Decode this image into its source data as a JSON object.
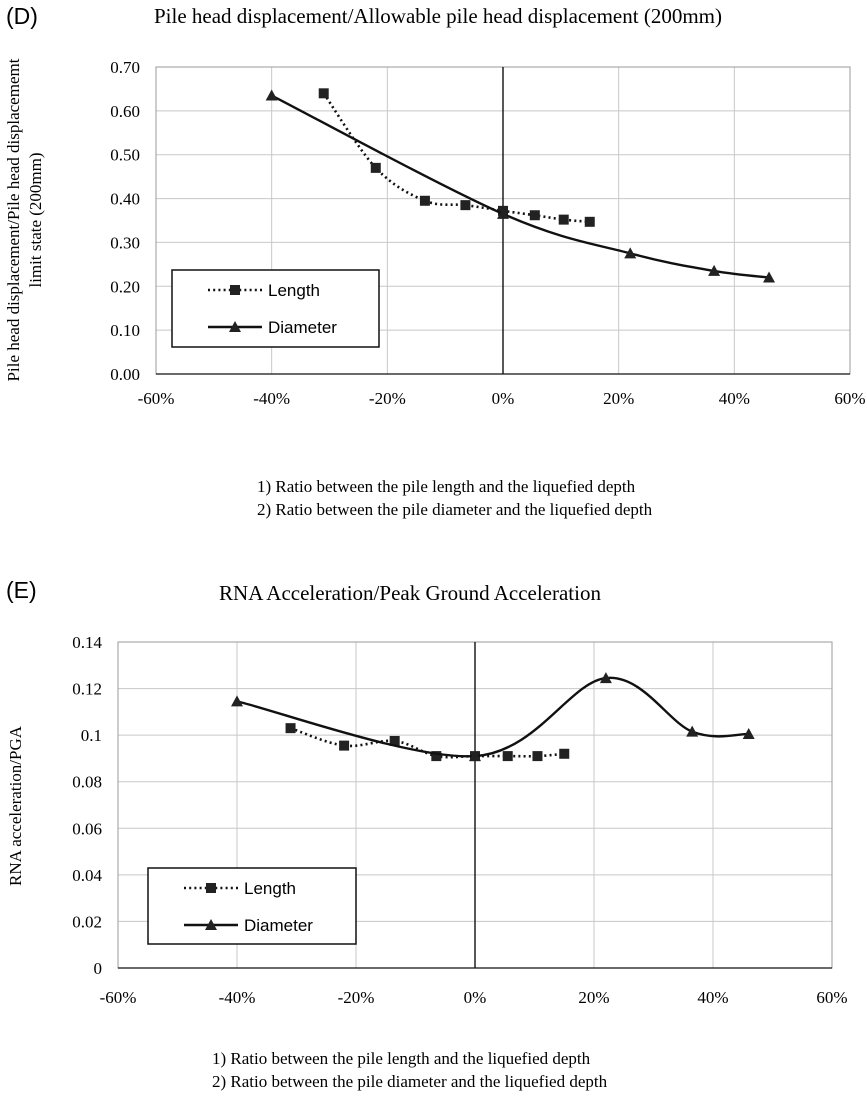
{
  "chart_data": [
    {
      "type": "line",
      "panel_label": "(D)",
      "title": "Pile head displacement/Allowable pile head displacement (200mm)",
      "ylabel_lines": [
        "Pile head displacement/Pile head displacememt",
        "limit state (200mm)"
      ],
      "xlim": [
        -0.6,
        0.6
      ],
      "ylim": [
        0,
        0.7
      ],
      "x_ticks": [
        -0.6,
        -0.4,
        -0.2,
        0,
        0.2,
        0.4,
        0.6
      ],
      "x_tick_labels": [
        "-60%",
        "-40%",
        "-20%",
        "0%",
        "20%",
        "40%",
        "60%"
      ],
      "y_ticks": [
        0,
        0.1,
        0.2,
        0.3,
        0.4,
        0.5,
        0.6,
        0.7
      ],
      "y_tick_labels": [
        "0.00",
        "0.10",
        "0.20",
        "0.30",
        "0.40",
        "0.50",
        "0.60",
        "0.70"
      ],
      "grid": true,
      "legend_position": "bottom-left",
      "series": [
        {
          "name": "Length",
          "marker": "square",
          "line": "dotted",
          "x": [
            -0.31,
            -0.22,
            -0.135,
            -0.065,
            0.0,
            0.055,
            0.105,
            0.15
          ],
          "y": [
            0.64,
            0.47,
            0.395,
            0.385,
            0.372,
            0.362,
            0.352,
            0.347
          ]
        },
        {
          "name": "Diameter",
          "marker": "triangle",
          "line": "solid",
          "x": [
            -0.4,
            0.0,
            0.22,
            0.365,
            0.46
          ],
          "y": [
            0.635,
            0.365,
            0.275,
            0.235,
            0.22
          ]
        }
      ],
      "notes": [
        "1) Ratio between the pile length and the liquefied depth",
        "2) Ratio between the pile diameter and the liquefied depth"
      ]
    },
    {
      "type": "line",
      "panel_label": "(E)",
      "title": "RNA Acceleration/Peak Ground Acceleration",
      "ylabel_lines": [
        "RNA acceleration/PGA"
      ],
      "xlim": [
        -0.6,
        0.6
      ],
      "ylim": [
        0,
        0.14
      ],
      "x_ticks": [
        -0.6,
        -0.4,
        -0.2,
        0,
        0.2,
        0.4,
        0.6
      ],
      "x_tick_labels": [
        "-60%",
        "-40%",
        "-20%",
        "0%",
        "20%",
        "40%",
        "60%"
      ],
      "y_ticks": [
        0,
        0.02,
        0.04,
        0.06,
        0.08,
        0.1,
        0.12,
        0.14
      ],
      "y_tick_labels": [
        "0",
        "0.02",
        "0.04",
        "0.06",
        "0.08",
        "0.1",
        "0.12",
        "0.14"
      ],
      "grid": true,
      "legend_position": "bottom-left",
      "series": [
        {
          "name": "Length",
          "marker": "square",
          "line": "dotted",
          "x": [
            -0.31,
            -0.22,
            -0.135,
            -0.065,
            0.0,
            0.055,
            0.105,
            0.15
          ],
          "y": [
            0.103,
            0.0955,
            0.0975,
            0.091,
            0.091,
            0.091,
            0.091,
            0.092
          ]
        },
        {
          "name": "Diameter",
          "marker": "triangle",
          "line": "solid",
          "x": [
            -0.4,
            0.0,
            0.22,
            0.365,
            0.46
          ],
          "y": [
            0.1145,
            0.091,
            0.1245,
            0.1015,
            0.1005
          ]
        }
      ],
      "notes": [
        "1) Ratio between the pile length and the liquefied depth",
        "2) Ratio between the pile diameter and the liquefied depth"
      ]
    }
  ]
}
